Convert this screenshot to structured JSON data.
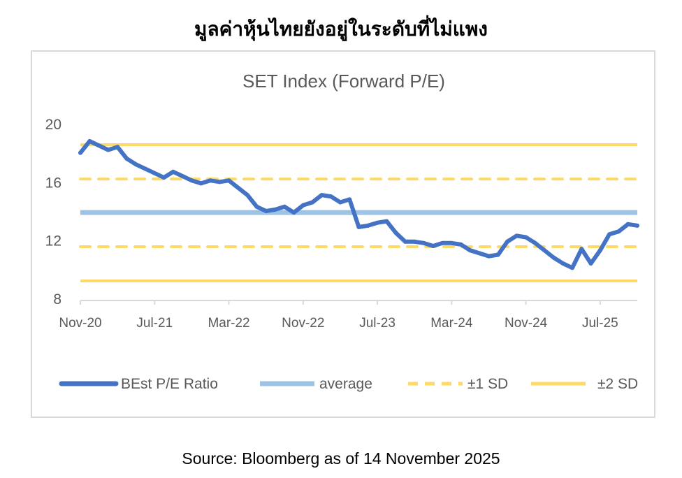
{
  "header": {
    "title": "มูลค่าหุ้นไทยยังอยู่ในระดับที่ไม่แพง"
  },
  "footer": {
    "source": "Source: Bloomberg as of 14 November 2025"
  },
  "chart_data": {
    "type": "line",
    "title": "SET Index (Forward P/E)",
    "xlabel": "",
    "ylabel": "",
    "ylim": [
      8,
      20
    ],
    "y_ticks": [
      "8",
      "12",
      "16",
      "20"
    ],
    "y_tick_values": [
      8,
      12,
      16,
      20
    ],
    "x_ticks": [
      "Nov-20",
      "Jul-21",
      "Mar-22",
      "Nov-22",
      "Jul-23",
      "Mar-24",
      "Nov-24",
      "Jul-25"
    ],
    "x_tick_month_index": [
      0,
      8,
      16,
      24,
      32,
      40,
      48,
      56
    ],
    "x_range_months": [
      0,
      60
    ],
    "grid": false,
    "legend_position": "bottom",
    "colors": {
      "pe": "#4472c4",
      "average": "#9dc3e6",
      "sd": "#ffd966",
      "axis": "#d9d9d9"
    },
    "series": [
      {
        "name": "BEst P/E Ratio",
        "style": "solid",
        "values": [
          18.0,
          18.8,
          18.5,
          18.2,
          18.4,
          17.6,
          17.2,
          16.9,
          16.6,
          16.3,
          16.7,
          16.4,
          16.1,
          15.9,
          16.1,
          16.0,
          16.1,
          15.6,
          15.1,
          14.3,
          14.0,
          14.1,
          14.3,
          13.9,
          14.4,
          14.6,
          15.1,
          15.0,
          14.6,
          14.8,
          12.9,
          13.0,
          13.2,
          13.3,
          12.5,
          11.9,
          11.9,
          11.8,
          11.6,
          11.8,
          11.8,
          11.7,
          11.3,
          11.1,
          10.9,
          11.0,
          11.9,
          12.3,
          12.2,
          11.8,
          11.3,
          10.8,
          10.4,
          10.1,
          11.4,
          10.4,
          11.3,
          12.4,
          12.6,
          13.1,
          13.0
        ]
      },
      {
        "name": "average",
        "style": "solid",
        "value": 13.9
      },
      {
        "name": "±1 SD",
        "style": "dashed",
        "values": [
          11.55,
          16.2
        ]
      },
      {
        "name": "±2 SD",
        "style": "solid",
        "values": [
          9.2,
          18.56
        ]
      }
    ]
  }
}
